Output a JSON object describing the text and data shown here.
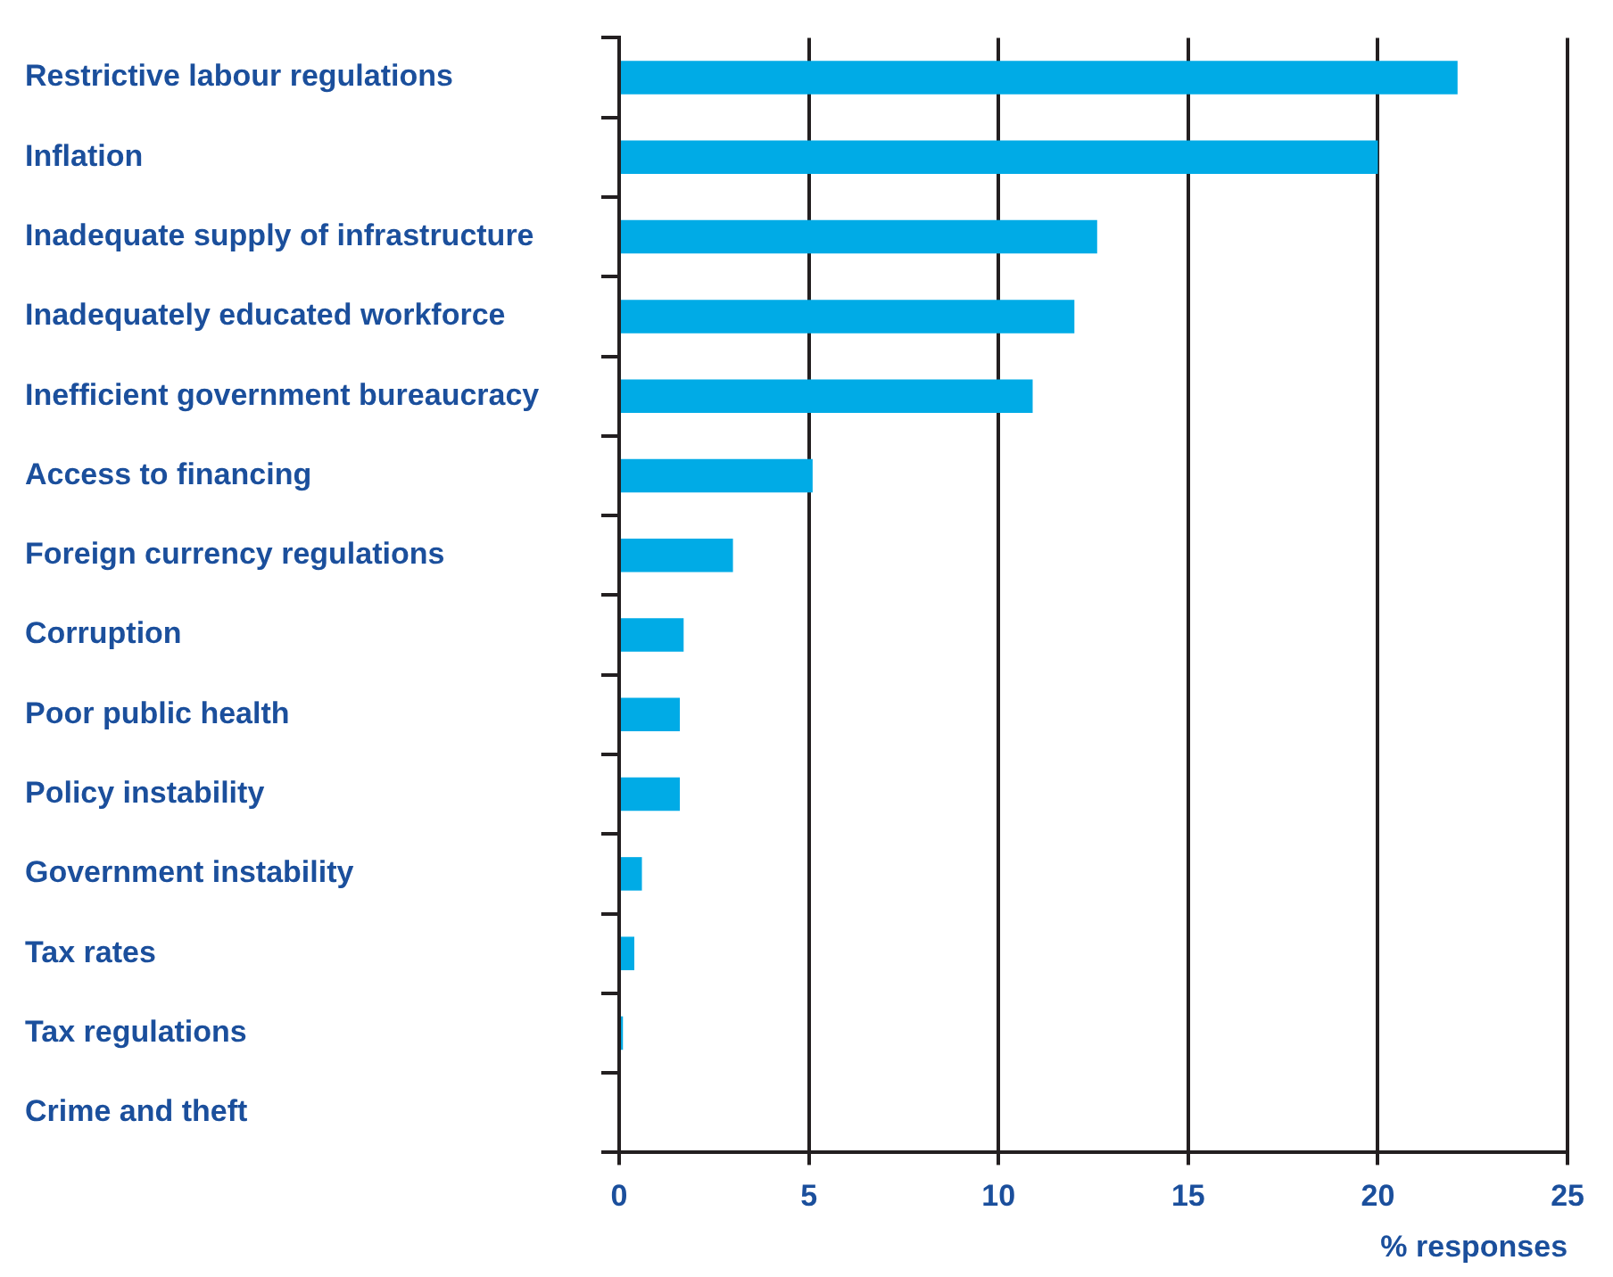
{
  "chart_data": {
    "type": "bar",
    "orientation": "horizontal",
    "xlabel": "% responses",
    "categories": [
      "Restrictive labour regulations",
      "Inflation",
      "Inadequate supply of infrastructure",
      "Inadequately educated workforce",
      "Inefficient government bureaucracy",
      "Access to financing",
      "Foreign currency regulations",
      "Corruption",
      "Poor public health",
      "Policy instability",
      "Government instability",
      "Tax rates",
      "Tax regulations",
      "Crime and theft"
    ],
    "values": [
      22.1,
      20.0,
      12.6,
      12.0,
      10.9,
      5.1,
      3.0,
      1.7,
      1.6,
      1.6,
      0.6,
      0.4,
      0.1,
      0
    ],
    "color": "#00abe6",
    "xlim": [
      0,
      25
    ],
    "xticks": [
      0,
      5,
      10,
      15,
      20,
      25
    ],
    "grid": "x"
  }
}
